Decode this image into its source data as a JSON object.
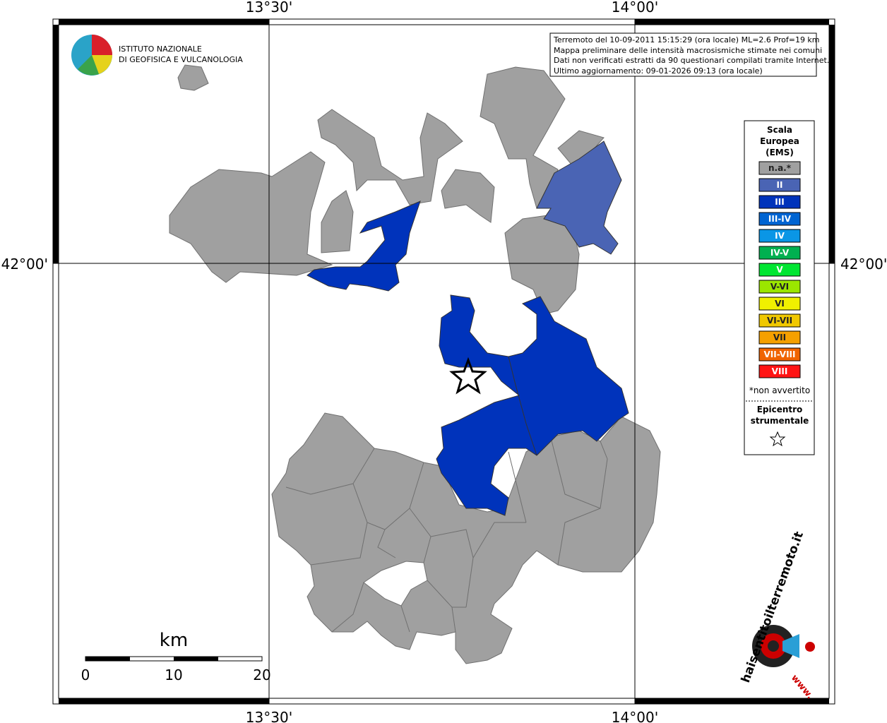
{
  "axis_labels": {
    "lon": [
      "13°30'",
      "14°00'"
    ],
    "lat": [
      "42°00'"
    ]
  },
  "info_box": [
    "Terremoto del 10-09-2011 15:15:29 (ora locale) ML=2.6 Prof=19 km",
    "Mappa preliminare delle intensità macrosismiche stimate nei comuni",
    "Dati non verificati estratti da 90 questionari compilati tramite Internet.",
    "Ultimo aggiornamento: 09-01-2026 09:13 (ora locale)"
  ],
  "logo": [
    "ISTITUTO NAZIONALE",
    "DI GEOFISICA E VULCANOLOGIA"
  ],
  "legend": {
    "title": [
      "Scala",
      "Europea",
      "(EMS)"
    ],
    "items": [
      {
        "label": "n.a.*",
        "color": "#a0a0a0"
      },
      {
        "label": "II",
        "color": "#4a64b4"
      },
      {
        "label": "III",
        "color": "#0033bb"
      },
      {
        "label": "III-IV",
        "color": "#0064d2"
      },
      {
        "label": "IV",
        "color": "#0a96e6"
      },
      {
        "label": "IV-V",
        "color": "#00b050"
      },
      {
        "label": "V",
        "color": "#00e632"
      },
      {
        "label": "V-VI",
        "color": "#9be600"
      },
      {
        "label": "VI",
        "color": "#f0f000"
      },
      {
        "label": "VI-VII",
        "color": "#f0c800"
      },
      {
        "label": "VII",
        "color": "#f5a000"
      },
      {
        "label": "VII-VIII",
        "color": "#f06400"
      },
      {
        "label": "VIII",
        "color": "#ff1414"
      }
    ],
    "note": "*non avvertito",
    "epicenter": [
      "Epicentro",
      "strumentale"
    ]
  },
  "scale_bar": {
    "unit": "km",
    "labels": [
      "0",
      "10",
      "20"
    ]
  },
  "badge": [
    "haisentitoilterremoto.it",
    "www."
  ]
}
